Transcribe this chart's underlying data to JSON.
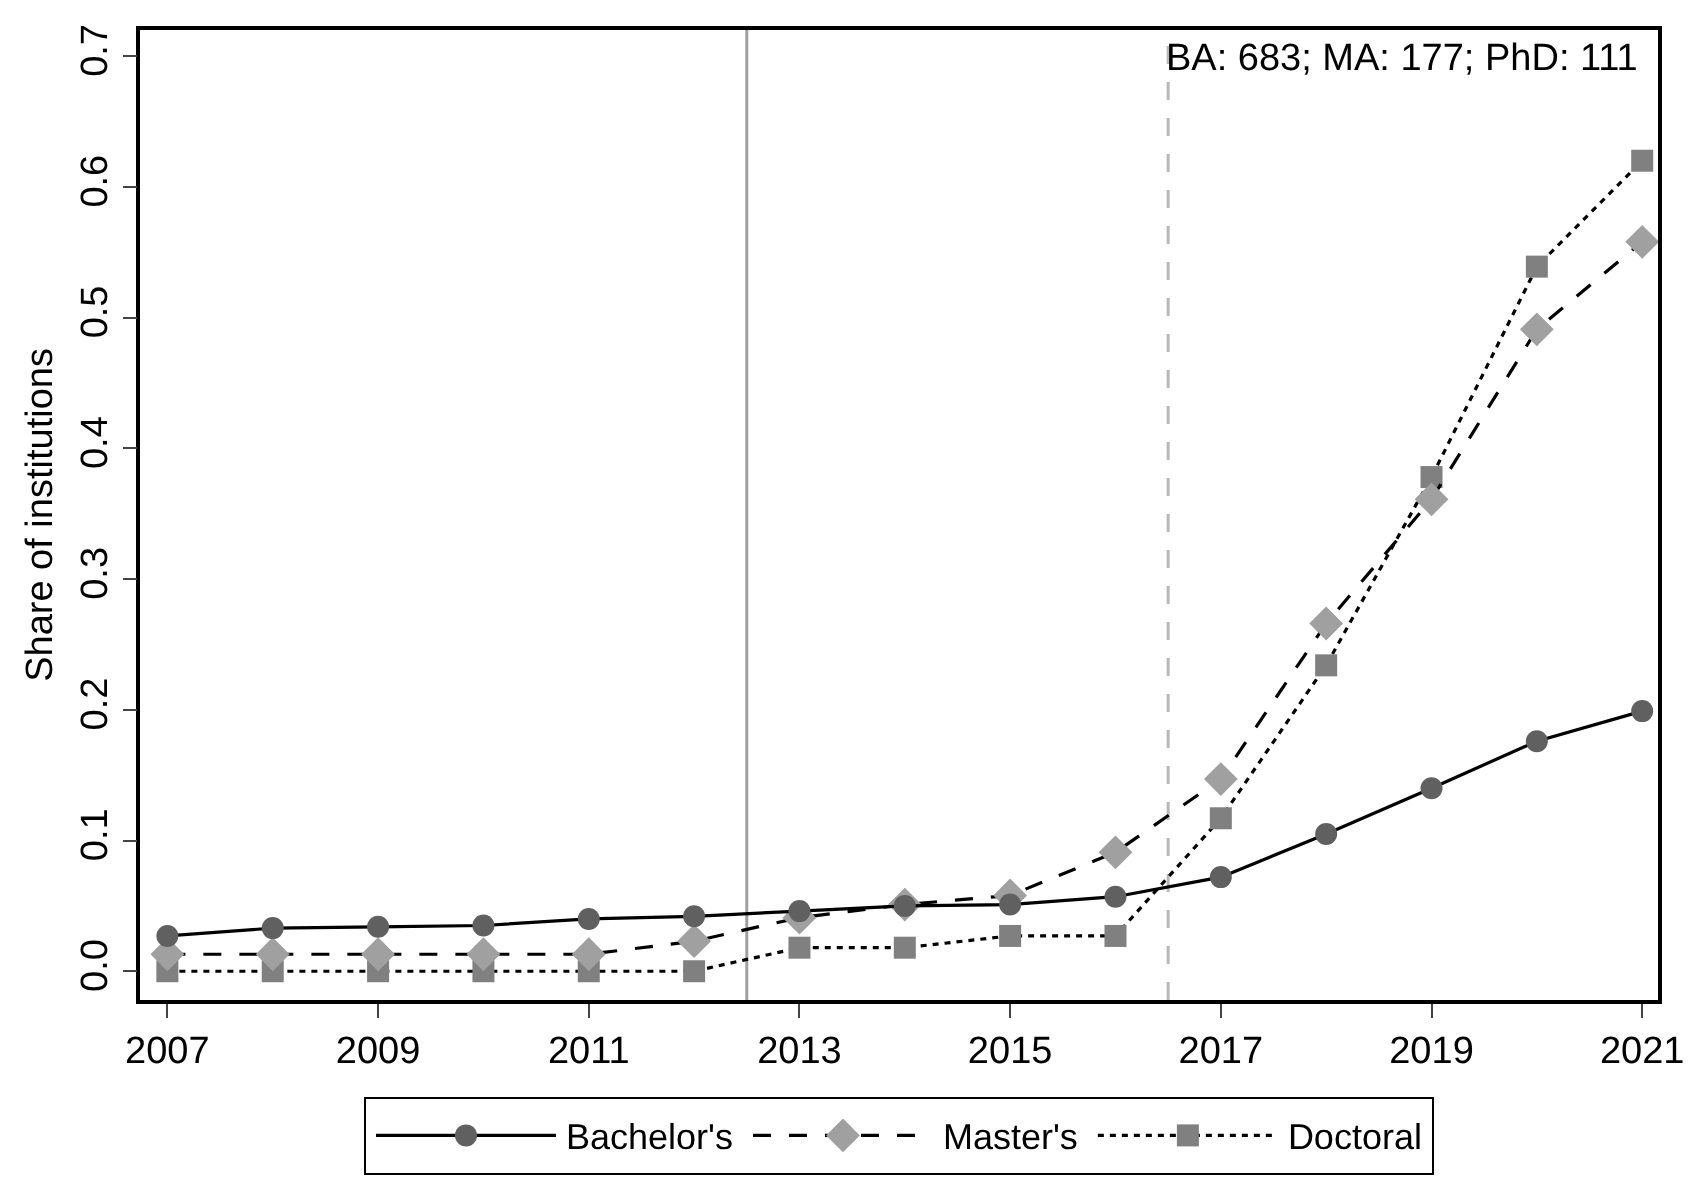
{
  "chart_data": {
    "type": "line",
    "ylabel": "Share of institutions",
    "x": [
      2007,
      2008,
      2009,
      2010,
      2011,
      2012,
      2013,
      2014,
      2015,
      2016,
      2017,
      2018,
      2019,
      2020,
      2021
    ],
    "series": [
      {
        "name": "Bachelor's",
        "color": "#606060",
        "marker": "circle",
        "line_style": "solid",
        "values": [
          0.027,
          0.033,
          0.034,
          0.035,
          0.04,
          0.042,
          0.046,
          0.05,
          0.051,
          0.057,
          0.072,
          0.105,
          0.14,
          0.176,
          0.199
        ]
      },
      {
        "name": "Master's",
        "color": "#a0a0a0",
        "marker": "diamond",
        "line_style": "dashed",
        "values": [
          0.013,
          0.013,
          0.013,
          0.013,
          0.013,
          0.023,
          0.041,
          0.051,
          0.058,
          0.091,
          0.147,
          0.266,
          0.361,
          0.491,
          0.558
        ]
      },
      {
        "name": "Doctoral",
        "color": "#808080",
        "marker": "square",
        "line_style": "dotted",
        "values": [
          0.0,
          0.0,
          0.0,
          0.0,
          0.0,
          0.0,
          0.018,
          0.018,
          0.027,
          0.027,
          0.117,
          0.234,
          0.378,
          0.539,
          0.62
        ]
      }
    ],
    "xlim": [
      2006.74,
      2021.15
    ],
    "ylim": [
      -0.022,
      0.72
    ],
    "xticks": [
      2007,
      2009,
      2011,
      2013,
      2015,
      2017,
      2019,
      2021
    ],
    "yticks": [
      {
        "value": 0,
        "label": "0.0"
      },
      0.1,
      0.2,
      0.3,
      0.4,
      0.5,
      0.6,
      0.7
    ],
    "ref_lines": [
      {
        "axis": "x",
        "value": 2012.5,
        "color": "#a0a0a0",
        "line_style": "solid"
      },
      {
        "axis": "x",
        "value": 2016.5,
        "color": "#b8b8b8",
        "line_style": "dashed"
      }
    ],
    "annotations": [
      "BA: 683; MA: 177; PhD: 111"
    ],
    "legend": "bottom",
    "grid": false
  }
}
